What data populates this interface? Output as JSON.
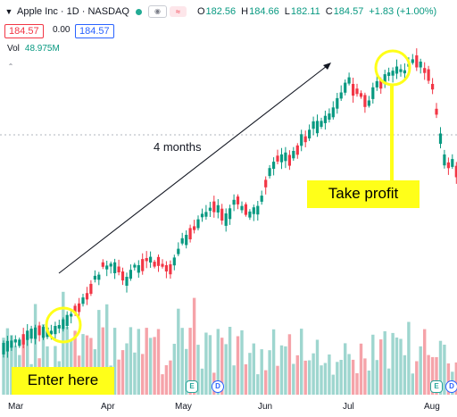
{
  "header": {
    "title": "Apple Inc · 1D · NASDAQ",
    "collapse_icon": "chevron-down-icon",
    "status_color": "#22ab94",
    "ohlc": [
      {
        "key": "O",
        "value": "182.56"
      },
      {
        "key": "H",
        "value": "184.66"
      },
      {
        "key": "L",
        "value": "182.11"
      },
      {
        "key": "C",
        "value": "184.57"
      }
    ],
    "change": "+1.83 (+1.00%)"
  },
  "trade": {
    "sell": "184.57",
    "spread": "0.00",
    "buy": "184.57"
  },
  "volume": {
    "label": "Vol",
    "value": "48.975M"
  },
  "x_axis": {
    "months": [
      "Mar",
      "Apr",
      "May",
      "Jun",
      "Jul",
      "Aug"
    ]
  },
  "annotations": {
    "arrow_label": "4 months",
    "enter_label": "Enter here",
    "profit_label": "Take profit",
    "highlight_color": "#ffff19"
  },
  "events": {
    "earnings_label": "E",
    "dividend_label": "D"
  },
  "colors": {
    "up": "#089981",
    "down": "#f23645",
    "up_volume": "#9ed6cf",
    "down_volume": "#f5a3a9"
  }
}
